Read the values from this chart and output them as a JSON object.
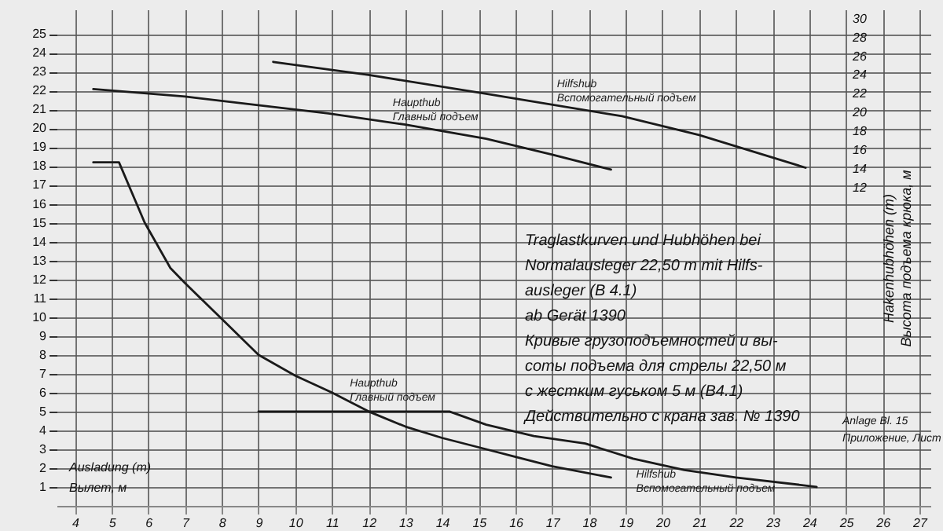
{
  "chart_data": {
    "type": "line",
    "title": "Traglastkurven und Hubhöhen bei\nNormalausleger 22,50 m mit Hilfs-\nausleger (B 4.1)\nab Gerät 1390",
    "subtitle": "Кривые грузоподъемностей и вы-\nсоты подъема для стрелы 22,50 м\nс жестким гуськом 5 м (B4.1)\nДействительно с крана зав. № 1390",
    "xlabel": "Ausladung (m)\nВылет, м",
    "y2label": "Hakenhubhöhen (m)\nВысота подъема крюка, м",
    "annotations": [
      "Anlage Bl. 15\nПриложение, Лист"
    ],
    "xlim": [
      3.5,
      27.3
    ],
    "xticks": [
      4,
      5,
      6,
      7,
      8,
      9,
      10,
      11,
      12,
      13,
      14,
      15,
      16,
      17,
      18,
      19,
      20,
      21,
      22,
      23,
      24,
      25,
      26,
      27
    ],
    "ylim": [
      0,
      26.3
    ],
    "yticks": [
      1,
      2,
      3,
      4,
      5,
      6,
      7,
      8,
      9,
      10,
      11,
      12,
      13,
      14,
      15,
      16,
      17,
      18,
      19,
      20,
      21,
      22,
      23,
      24,
      25
    ],
    "y2lim": [
      -22,
      31
    ],
    "y2ticks": [
      12,
      14,
      16,
      18,
      20,
      22,
      24,
      26,
      28,
      30
    ],
    "grid": true,
    "series": [
      {
        "name": "Haupthub\nГлавный подъем",
        "color": "#1a1a1a",
        "x": [
          4.5,
          5.2,
          5.9,
          6.6,
          7.0,
          8.0,
          9.0,
          10.0,
          11.0,
          12.0,
          13.0,
          14.0,
          15.0,
          16.0,
          17.0,
          18.6
        ],
        "values": [
          18.2,
          18.2,
          15.0,
          12.6,
          11.8,
          9.9,
          8.0,
          6.9,
          6.0,
          5.0,
          4.2,
          3.6,
          3.1,
          2.6,
          2.1,
          1.5
        ]
      },
      {
        "name": "Hilfshub\nВспомогательный подъем",
        "color": "#1a1a1a",
        "x": [
          9.0,
          14.2,
          15.2,
          16.5,
          17.9,
          19.2,
          20.6,
          22.0,
          23.8,
          24.2
        ],
        "values": [
          5.0,
          5.0,
          4.3,
          3.7,
          3.3,
          2.5,
          1.9,
          1.5,
          1.1,
          1.0
        ]
      },
      {
        "name": "Haupthub\nГлавный подъем",
        "color": "#1a1a1a",
        "axis": "y2",
        "x": [
          4.5,
          7.0,
          10.9,
          13.0,
          15.2,
          17.0,
          18.6
        ],
        "values": [
          22.5,
          21.7,
          19.9,
          18.7,
          17.2,
          15.5,
          13.9
        ]
      },
      {
        "name": "Hilfshub\nВспомогательный подъем",
        "color": "#1a1a1a",
        "axis": "y2",
        "x": [
          9.4,
          12.0,
          15.2,
          18.9,
          21.0,
          23.9
        ],
        "values": [
          25.4,
          24.0,
          22.0,
          19.6,
          17.6,
          14.1
        ]
      }
    ]
  }
}
